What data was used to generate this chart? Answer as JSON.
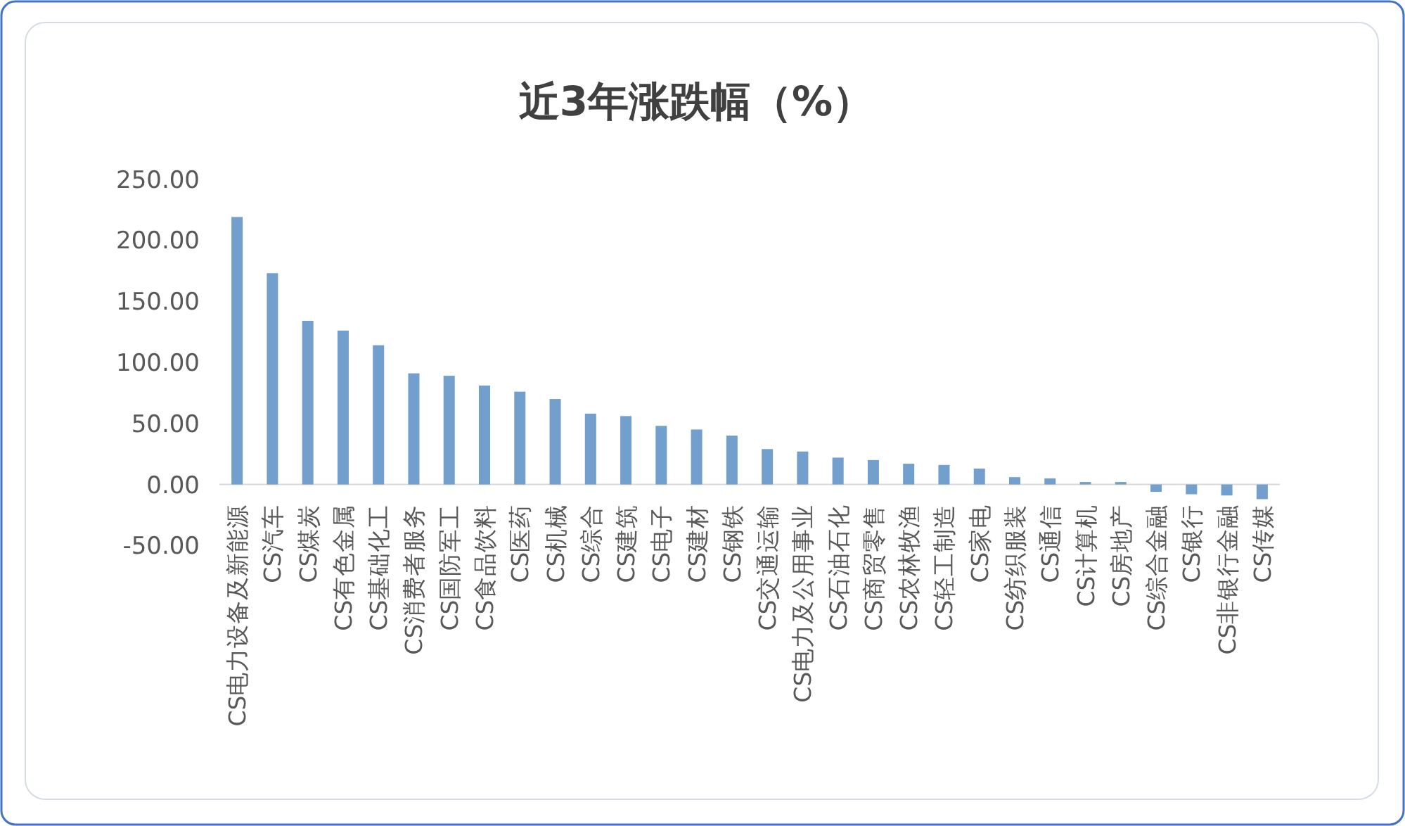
{
  "chart_data": {
    "type": "bar",
    "title": "近3年涨跌幅（%）",
    "categories": [
      "CS电力设备及新能源",
      "CS汽车",
      "CS煤炭",
      "CS有色金属",
      "CS基础化工",
      "CS消费者服务",
      "CS国防军工",
      "CS食品饮料",
      "CS医药",
      "CS机械",
      "CS综合",
      "CS建筑",
      "CS电子",
      "CS建材",
      "CS钢铁",
      "CS交通运输",
      "CS电力及公用事业",
      "CS石油石化",
      "CS商贸零售",
      "CS农林牧渔",
      "CS轻工制造",
      "CS家电",
      "CS纺织服装",
      "CS通信",
      "CS计算机",
      "CS房地产",
      "CS综合金融",
      "CS银行",
      "CS非银行金融",
      "CS传媒"
    ],
    "values": [
      219,
      173,
      134,
      126,
      114,
      91,
      89,
      81,
      76,
      70,
      58,
      56,
      48,
      45,
      40,
      29,
      27,
      22,
      20,
      17,
      16,
      13,
      6,
      5,
      2,
      2,
      -6,
      -8,
      -9,
      -12
    ],
    "color": "#729fcb",
    "ylim": [
      -50,
      250
    ],
    "yticks": [
      {
        "value": -50,
        "label": "-50.00"
      },
      {
        "value": 0,
        "label": "0.00"
      },
      {
        "value": 50,
        "label": "50.00"
      },
      {
        "value": 100,
        "label": "100.00"
      },
      {
        "value": 150,
        "label": "150.00"
      },
      {
        "value": 200,
        "label": "200.00"
      },
      {
        "value": 250,
        "label": "250.00"
      }
    ]
  }
}
